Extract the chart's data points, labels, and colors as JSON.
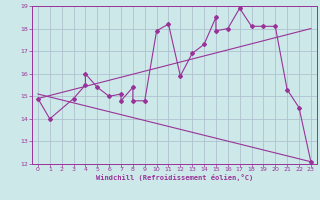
{
  "xlabel": "Windchill (Refroidissement éolien,°C)",
  "bg_color": "#cce8e8",
  "grid_color": "#aabbcc",
  "line_color": "#993399",
  "xlim": [
    -0.5,
    23.5
  ],
  "ylim": [
    12,
    19
  ],
  "xticks": [
    0,
    1,
    2,
    3,
    4,
    5,
    6,
    7,
    8,
    9,
    10,
    11,
    12,
    13,
    14,
    15,
    16,
    17,
    18,
    19,
    20,
    21,
    22,
    23
  ],
  "yticks": [
    12,
    13,
    14,
    15,
    16,
    17,
    18,
    19
  ],
  "curve1_x": [
    0,
    1,
    3,
    4,
    4,
    5,
    6,
    7,
    7,
    8,
    8,
    9,
    10,
    11,
    12,
    13,
    14,
    15,
    15,
    16,
    17,
    18,
    19,
    20,
    21,
    22,
    23
  ],
  "curve1_y": [
    14.9,
    14.0,
    14.9,
    15.5,
    16.0,
    15.4,
    15.0,
    15.1,
    14.8,
    15.4,
    14.8,
    14.8,
    17.9,
    18.2,
    15.9,
    16.9,
    17.3,
    18.5,
    17.9,
    18.0,
    18.9,
    18.1,
    18.1,
    18.1,
    15.3,
    14.5,
    12.1
  ],
  "curve2_x": [
    0,
    23
  ],
  "curve2_y": [
    14.9,
    18.0
  ],
  "curve3_x": [
    0,
    23
  ],
  "curve3_y": [
    15.1,
    12.1
  ]
}
